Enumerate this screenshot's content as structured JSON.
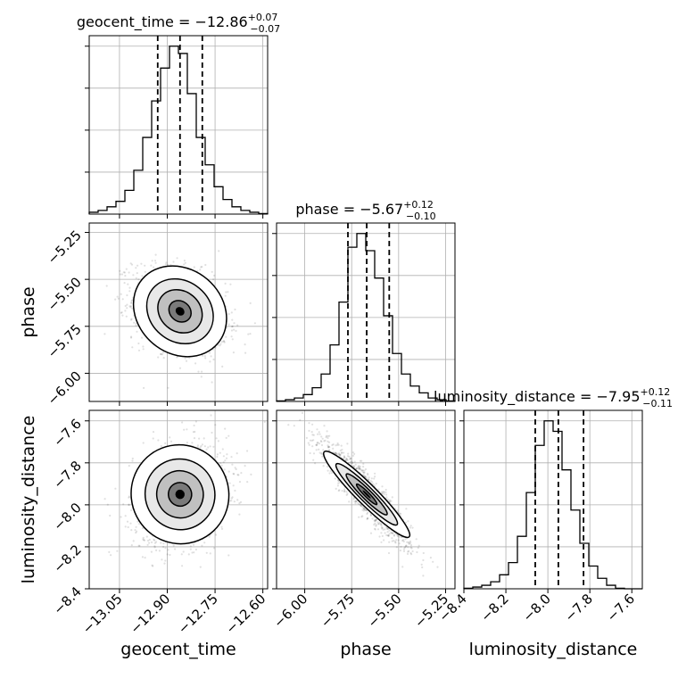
{
  "chart_data": {
    "type": "corner",
    "grid": true,
    "parameters": [
      {
        "name": "geocent_time",
        "label": "geocent_time",
        "title_prefix": "geocent_time = ",
        "median": "−12.86",
        "upper": "+0.07",
        "lower": "−0.07",
        "median_value": -12.86,
        "q_low": -12.93,
        "q_high": -12.79,
        "range": [
          -13.145,
          -12.585
        ],
        "ticks": [
          -13.05,
          -12.9,
          -12.75,
          -12.6
        ],
        "tick_labels": [
          "−13.05",
          "−12.90",
          "−12.75",
          "−12.60"
        ],
        "hist_start": -13.145,
        "hist_step": 0.028,
        "hist_counts": [
          1,
          2,
          4,
          7,
          13,
          24,
          42,
          62,
          80,
          92,
          88,
          66,
          42,
          27,
          15,
          8,
          4,
          2,
          1,
          0.3
        ]
      },
      {
        "name": "phase",
        "label": "phase",
        "title_prefix": "phase = ",
        "median": "−5.67",
        "upper": "+0.12",
        "lower": "−0.10",
        "median_value": -5.67,
        "q_low": -5.77,
        "q_high": -5.55,
        "range": [
          -6.15,
          -5.2
        ],
        "ticks": [
          -6.0,
          -5.75,
          -5.5,
          -5.25
        ],
        "tick_labels": [
          "−6.00",
          "−5.75",
          "−5.50",
          "−5.25"
        ],
        "hist_start": -6.15,
        "hist_step": 0.0475,
        "hist_counts": [
          0.3,
          1,
          2,
          4,
          8,
          16,
          33,
          58,
          90,
          98,
          88,
          72,
          50,
          28,
          16,
          9,
          5,
          2,
          1,
          0.3
        ]
      },
      {
        "name": "luminosity_distance",
        "label": "luminosity_distance",
        "title_prefix": "luminosity_distance = ",
        "median": "−7.95",
        "upper": "+0.12",
        "lower": "−0.11",
        "median_value": -7.95,
        "q_low": -8.06,
        "q_high": -7.83,
        "range": [
          -8.4,
          -7.55
        ],
        "ticks": [
          -8.4,
          -8.2,
          -8.0,
          -7.8,
          -7.6
        ],
        "tick_labels": [
          "−8.4",
          "−8.2",
          "−8.0",
          "−7.8",
          "−7.6"
        ],
        "hist_start": -8.4,
        "hist_step": 0.0425,
        "hist_counts": [
          0.3,
          1,
          2,
          4,
          8,
          15,
          30,
          55,
          82,
          96,
          90,
          68,
          45,
          26,
          13,
          6,
          2,
          0.3,
          0,
          0
        ]
      }
    ],
    "correlations": {
      "geocent_time|phase": -0.3,
      "geocent_time|luminosity_distance": 0.2,
      "phase|luminosity_distance": -0.92
    }
  }
}
